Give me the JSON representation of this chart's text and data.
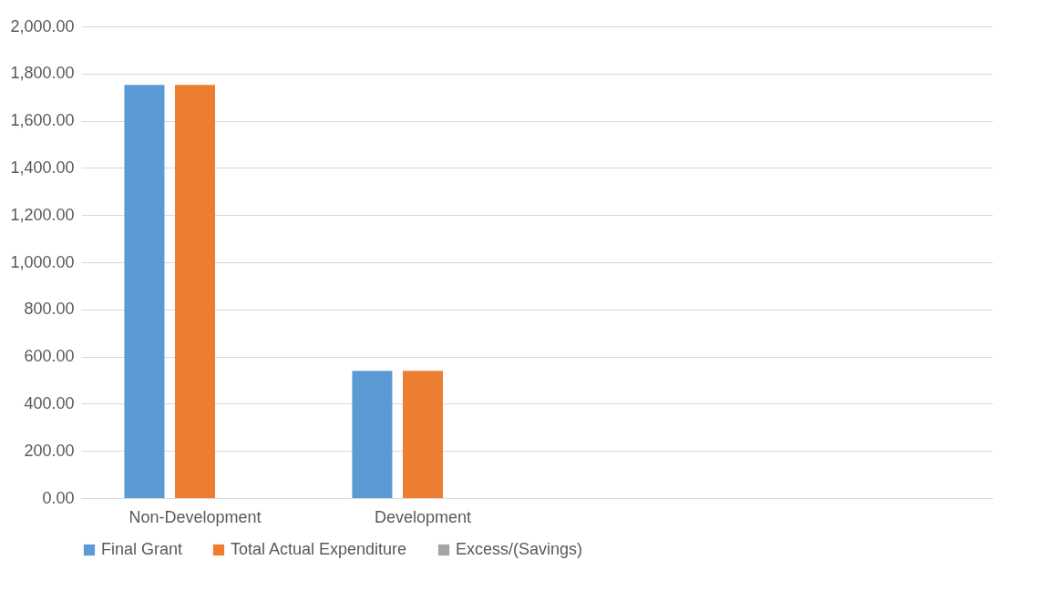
{
  "chart_data": {
    "type": "bar",
    "categories": [
      "Non-Development",
      "Development",
      null,
      null
    ],
    "series": [
      {
        "name": "Final Grant",
        "color": "#5b9bd5",
        "values": [
          1752,
          540,
          null,
          null
        ]
      },
      {
        "name": "Total Actual Expenditure",
        "color": "#ed7d31",
        "values": [
          1752,
          540,
          null,
          null
        ]
      },
      {
        "name": "Excess/(Savings)",
        "color": "#a5a5a5",
        "values": [
          0,
          0,
          null,
          null
        ]
      }
    ],
    "ylim": [
      0,
      2000
    ],
    "yticks": [
      {
        "value": 0,
        "label": "0.00"
      },
      {
        "value": 200,
        "label": "200.00"
      },
      {
        "value": 400,
        "label": "400.00"
      },
      {
        "value": 600,
        "label": "600.00"
      },
      {
        "value": 800,
        "label": "800.00"
      },
      {
        "value": 1000,
        "label": "1,000.00"
      },
      {
        "value": 1200,
        "label": "1,200.00"
      },
      {
        "value": 1400,
        "label": "1,400.00"
      },
      {
        "value": 1600,
        "label": "1,600.00"
      },
      {
        "value": 1800,
        "label": "1,800.00"
      },
      {
        "value": 2000,
        "label": "2,000.00"
      }
    ],
    "grid": "y",
    "legend": "bottom"
  }
}
